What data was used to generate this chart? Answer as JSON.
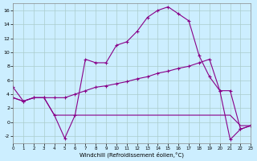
{
  "xlabel": "Windchill (Refroidissement éolien,°C)",
  "background_color": "#cceeff",
  "grid_color": "#aacccc",
  "line_color": "#880088",
  "x": [
    0,
    1,
    2,
    3,
    4,
    5,
    6,
    7,
    8,
    9,
    10,
    11,
    12,
    13,
    14,
    15,
    16,
    17,
    18,
    19,
    20,
    21,
    22,
    23
  ],
  "series1": [
    5.0,
    3.0,
    3.5,
    3.5,
    1.0,
    -2.3,
    1.0,
    9.0,
    8.5,
    8.5,
    11.0,
    11.5,
    13.0,
    15.0,
    16.0,
    16.5,
    15.5,
    14.5,
    9.5,
    6.5,
    4.5,
    -2.5,
    -1.0,
    -0.5
  ],
  "series2": [
    3.5,
    3.0,
    3.5,
    3.5,
    3.5,
    3.5,
    4.0,
    4.5,
    5.0,
    5.2,
    5.5,
    5.8,
    6.2,
    6.5,
    7.0,
    7.3,
    7.7,
    8.0,
    8.5,
    9.0,
    4.5,
    4.5,
    -1.0,
    -0.5
  ],
  "series3": [
    3.5,
    3.0,
    3.5,
    3.5,
    1.0,
    1.0,
    1.0,
    1.0,
    1.0,
    1.0,
    1.0,
    1.0,
    1.0,
    1.0,
    1.0,
    1.0,
    1.0,
    1.0,
    1.0,
    1.0,
    1.0,
    1.0,
    -0.5,
    -0.5
  ],
  "ylim": [
    -3,
    17
  ],
  "xlim": [
    0,
    23
  ],
  "yticks": [
    -2,
    0,
    2,
    4,
    6,
    8,
    10,
    12,
    14,
    16
  ],
  "xticks": [
    0,
    1,
    2,
    3,
    4,
    5,
    6,
    7,
    8,
    9,
    10,
    11,
    12,
    13,
    14,
    15,
    16,
    17,
    18,
    19,
    20,
    21,
    22,
    23
  ]
}
